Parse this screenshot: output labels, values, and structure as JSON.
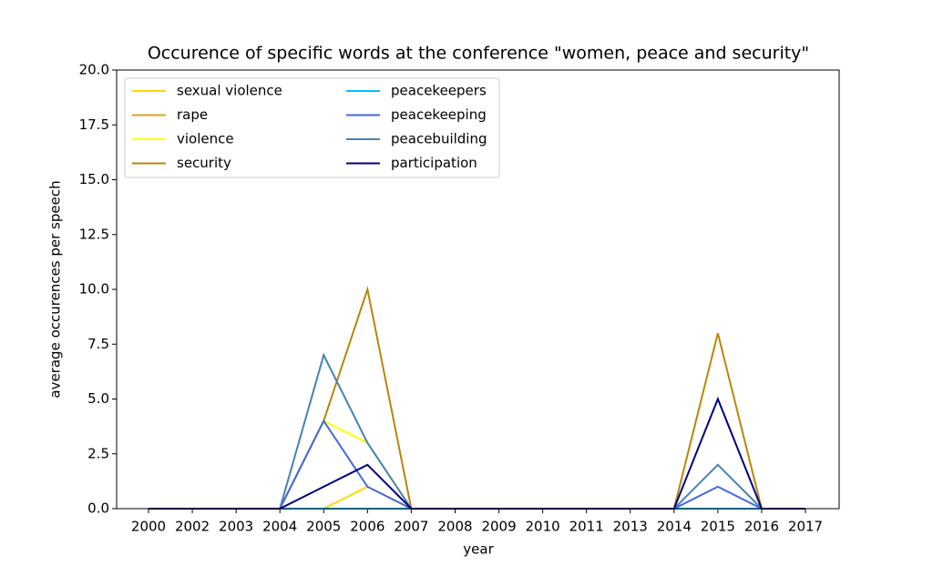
{
  "chart_data": {
    "type": "line",
    "title": "Occurence of specific words at the conference \"women, peace and security\"",
    "x_label": "year",
    "y_label": "average occurences per speech",
    "categories": [
      "2000",
      "2002",
      "2003",
      "2004",
      "2005",
      "2006",
      "2007",
      "2008",
      "2009",
      "2010",
      "2011",
      "2013",
      "2014",
      "2015",
      "2016",
      "2017"
    ],
    "series": [
      {
        "name": "sexual violence",
        "color": "#ffd700",
        "values": [
          0,
          0,
          0,
          0,
          0,
          1,
          0,
          0,
          0,
          0,
          0,
          0,
          0,
          0,
          0,
          0
        ]
      },
      {
        "name": "rape",
        "color": "#daa520",
        "values": [
          0,
          0,
          0,
          0,
          0,
          0,
          0,
          0,
          0,
          0,
          0,
          0,
          0,
          0,
          0,
          0
        ]
      },
      {
        "name": "violence",
        "color": "#ffff00",
        "values": [
          0,
          0,
          0,
          0,
          4,
          3,
          0,
          0,
          0,
          0,
          0,
          0,
          0,
          0,
          0,
          0
        ]
      },
      {
        "name": "security",
        "color": "#b8860b",
        "values": [
          0,
          0,
          0,
          0,
          4,
          10,
          0,
          0,
          0,
          0,
          0,
          0,
          0,
          8,
          0,
          0
        ]
      },
      {
        "name": "peacekeepers",
        "color": "#00bfff",
        "values": [
          0,
          0,
          0,
          0,
          0,
          0,
          0,
          0,
          0,
          0,
          0,
          0,
          0,
          0,
          0,
          0
        ]
      },
      {
        "name": "peacekeeping",
        "color": "#4169e1",
        "values": [
          0,
          0,
          0,
          0,
          4,
          1,
          0,
          0,
          0,
          0,
          0,
          0,
          0,
          1,
          0,
          0
        ]
      },
      {
        "name": "peacebuilding",
        "color": "#4682b4",
        "values": [
          0,
          0,
          0,
          0,
          7,
          3,
          0,
          0,
          0,
          0,
          0,
          0,
          0,
          2,
          0,
          0
        ]
      },
      {
        "name": "participation",
        "color": "#000080",
        "values": [
          0,
          0,
          0,
          0,
          1,
          2,
          0,
          0,
          0,
          0,
          0,
          0,
          0,
          5,
          0,
          0
        ]
      }
    ],
    "ylim": [
      0,
      20
    ],
    "yticks": [
      {
        "value": 0,
        "label": "0.0"
      },
      {
        "value": 2.5,
        "label": "2.5"
      },
      {
        "value": 5,
        "label": "5.0"
      },
      {
        "value": 7.5,
        "label": "7.5"
      },
      {
        "value": 10,
        "label": "10.0"
      },
      {
        "value": 12.5,
        "label": "12.5"
      },
      {
        "value": 15,
        "label": "15.0"
      },
      {
        "value": 17.5,
        "label": "17.5"
      },
      {
        "value": 20,
        "label": "20.0"
      }
    ],
    "legend": "upper left"
  }
}
